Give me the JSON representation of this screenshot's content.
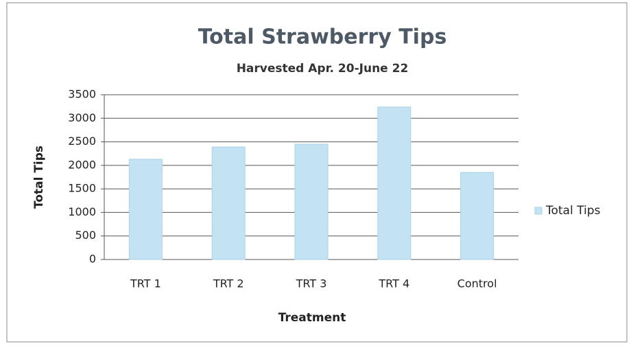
{
  "chart_data": {
    "type": "bar",
    "title": "Total Strawberry Tips",
    "subtitle": "Harvested Apr. 20-June 22",
    "x_label": "Treatment",
    "y_label": "Total Tips",
    "categories": [
      "TRT 1",
      "TRT 2",
      "TRT 3",
      "TRT 4",
      "Control"
    ],
    "series": [
      {
        "name": "Total Tips",
        "color": "#c3e3f3",
        "values": [
          2130,
          2390,
          2450,
          3240,
          1850
        ]
      }
    ],
    "ylim": [
      0,
      3500
    ],
    "yticks": [
      0,
      500,
      1000,
      1500,
      2000,
      2500,
      3000,
      3500
    ],
    "grid": true,
    "legend": "right"
  }
}
